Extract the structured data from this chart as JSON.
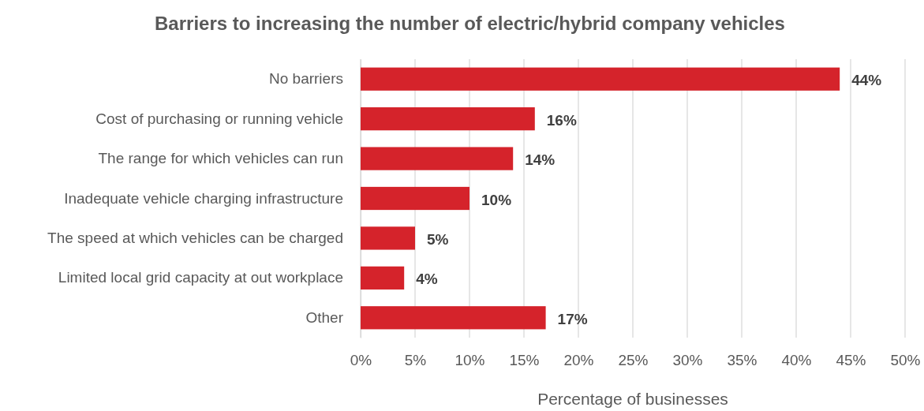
{
  "chart_data": {
    "type": "bar",
    "orientation": "horizontal",
    "title": "Barriers to increasing the number of electric/hybrid company vehicles",
    "xlabel": "Percentage of businesses",
    "categories": [
      "No barriers",
      "Cost of purchasing or running vehicle",
      "The range for which vehicles can run",
      "Inadequate vehicle charging infrastructure",
      "The speed at which vehicles can be charged",
      "Limited local grid capacity at out workplace",
      "Other"
    ],
    "values": [
      44,
      16,
      14,
      10,
      5,
      4,
      17
    ],
    "value_labels": [
      "44%",
      "16%",
      "14%",
      "10%",
      "5%",
      "4%",
      "17%"
    ],
    "color": "#d5232b",
    "xlim": [
      0,
      50
    ],
    "xticks": [
      {
        "value": 0,
        "label": "0%"
      },
      {
        "value": 5,
        "label": "5%"
      },
      {
        "value": 10,
        "label": "10%"
      },
      {
        "value": 15,
        "label": "15%"
      },
      {
        "value": 20,
        "label": "20%"
      },
      {
        "value": 25,
        "label": "25%"
      },
      {
        "value": 30,
        "label": "30%"
      },
      {
        "value": 35,
        "label": "35%"
      },
      {
        "value": 40,
        "label": "40%"
      },
      {
        "value": 45,
        "label": "45%"
      },
      {
        "value": 50,
        "label": "50%"
      }
    ],
    "grid": "x"
  }
}
